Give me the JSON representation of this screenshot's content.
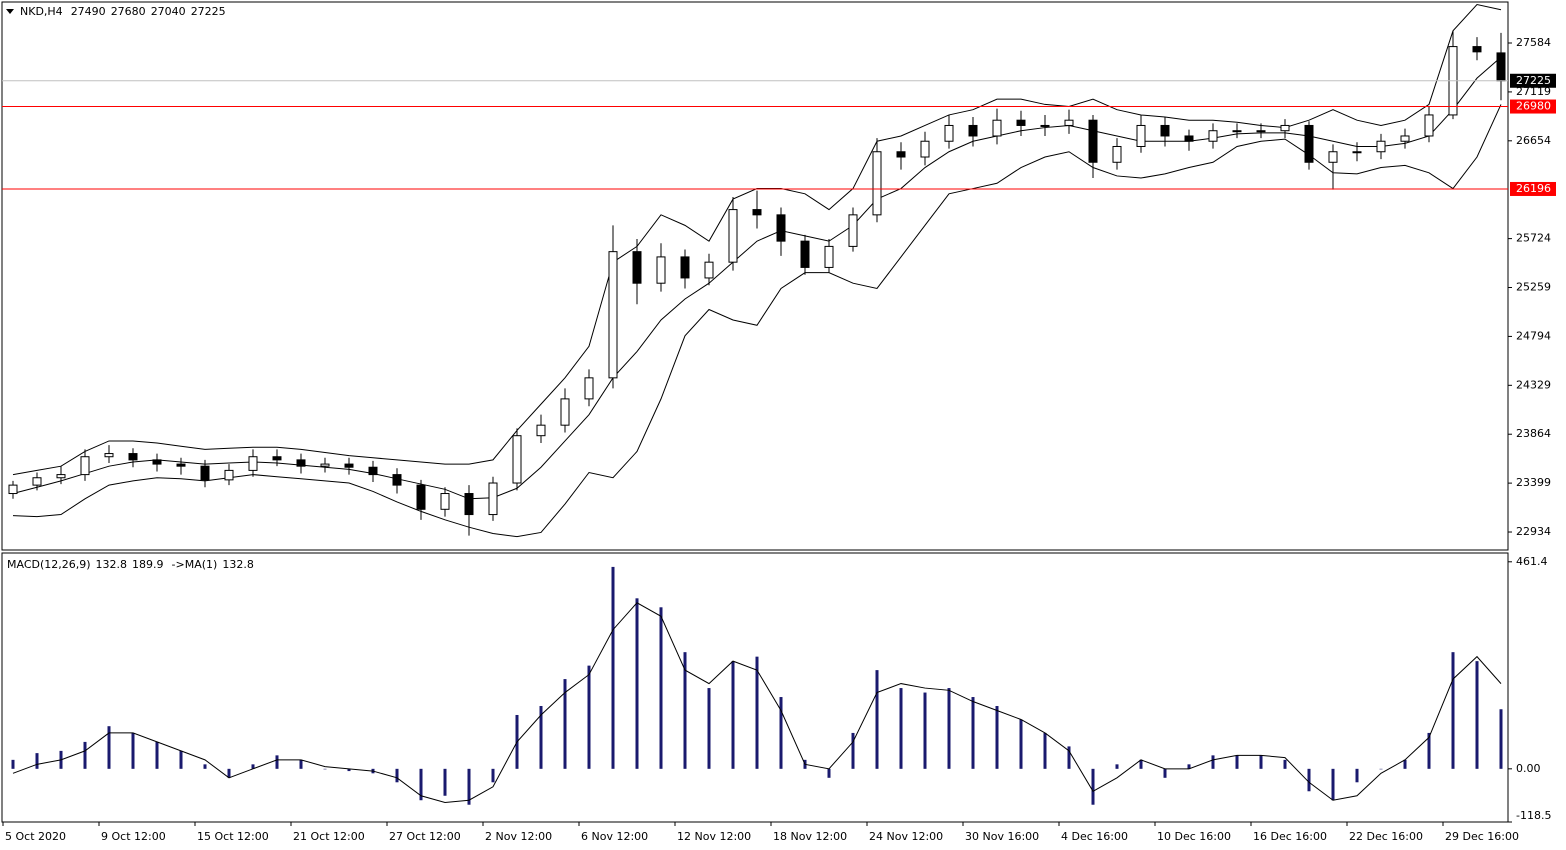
{
  "chart_data": [
    {
      "type": "candlestick",
      "title": "NKD,H4",
      "last_bar": {
        "open": 27490,
        "high": 27680,
        "low": 27040,
        "close": 27225
      },
      "ylim": [
        22763,
        27993
      ],
      "yticks": [
        22934,
        23399,
        23864,
        24329,
        24794,
        25259,
        25724,
        26654,
        27119,
        27584
      ],
      "levels": [
        {
          "value": 26980,
          "color": "#ff0000"
        },
        {
          "value": 26196,
          "color": "#ff0000"
        }
      ],
      "open": [
        23300,
        23380,
        23450,
        23480,
        23650,
        23680,
        23620,
        23580,
        23560,
        23430,
        23520,
        23650,
        23620,
        23560,
        23580,
        23550,
        23480,
        23380,
        23150,
        23300,
        23100,
        23400,
        23850,
        23950,
        24200,
        24400,
        25600,
        25300,
        25550,
        25350,
        25500,
        26000,
        25950,
        25700,
        25450,
        25650,
        25950,
        26550,
        26500,
        26650,
        26800,
        26700,
        26850,
        26800,
        26800,
        26850,
        26450,
        26600,
        26800,
        26700,
        26650,
        26750,
        26750,
        26750,
        26800,
        26450,
        26550,
        26550,
        26650,
        26700,
        26900,
        27550,
        27490
      ],
      "high": [
        23420,
        23500,
        23560,
        23720,
        23760,
        23730,
        23680,
        23640,
        23620,
        23580,
        23720,
        23720,
        23680,
        23640,
        23640,
        23610,
        23540,
        23430,
        23360,
        23380,
        23460,
        23920,
        24050,
        24300,
        24480,
        25850,
        25720,
        25680,
        25620,
        25580,
        26120,
        26180,
        26020,
        25760,
        25720,
        26020,
        26680,
        26640,
        26740,
        26900,
        26880,
        26960,
        26940,
        26900,
        26950,
        26900,
        26680,
        26900,
        26880,
        26760,
        26820,
        26820,
        26820,
        26860,
        26840,
        26620,
        26640,
        26720,
        26770,
        26980,
        27700,
        27640,
        27680
      ],
      "low": [
        23250,
        23330,
        23390,
        23420,
        23590,
        23550,
        23510,
        23480,
        23360,
        23380,
        23460,
        23560,
        23490,
        23500,
        23480,
        23410,
        23300,
        23050,
        23080,
        22900,
        23040,
        23330,
        23780,
        23880,
        24130,
        24300,
        25100,
        25220,
        25250,
        25280,
        25420,
        25820,
        25560,
        25380,
        25400,
        25600,
        25880,
        26380,
        26420,
        26580,
        26600,
        26620,
        26700,
        26700,
        26720,
        26300,
        26380,
        26540,
        26600,
        26560,
        26580,
        26680,
        26680,
        26680,
        26380,
        26190,
        26460,
        26480,
        26580,
        26640,
        26860,
        27420,
        27040
      ],
      "close": [
        23380,
        23450,
        23480,
        23650,
        23680,
        23620,
        23580,
        23560,
        23430,
        23520,
        23650,
        23620,
        23560,
        23580,
        23550,
        23480,
        23380,
        23150,
        23300,
        23100,
        23400,
        23850,
        23950,
        24200,
        24400,
        25600,
        25300,
        25550,
        25350,
        25500,
        26000,
        25950,
        25700,
        25450,
        25650,
        25950,
        26550,
        26500,
        26650,
        26800,
        26700,
        26850,
        26800,
        26800,
        26850,
        26450,
        26600,
        26800,
        26700,
        26650,
        26750,
        26750,
        26750,
        26800,
        26450,
        26550,
        26550,
        26650,
        26700,
        26900,
        27550,
        27500,
        27225
      ],
      "bands": [
        {
          "color": "#000000",
          "values": [
            23480,
            23520,
            23560,
            23700,
            23800,
            23800,
            23780,
            23750,
            23720,
            23730,
            23740,
            23740,
            23720,
            23690,
            23660,
            23640,
            23620,
            23600,
            23580,
            23580,
            23620,
            23900,
            24150,
            24400,
            24700,
            25500,
            25650,
            25950,
            25850,
            25700,
            26100,
            26200,
            26200,
            26150,
            26000,
            26200,
            26650,
            26700,
            26800,
            26900,
            26950,
            27050,
            27050,
            27000,
            26980,
            27050,
            26950,
            26900,
            26880,
            26850,
            26850,
            26830,
            26800,
            26780,
            26850,
            26950,
            26850,
            26800,
            26850,
            27000,
            27700,
            27950,
            27900
          ]
        },
        {
          "color": "#000000",
          "values": [
            23300,
            23360,
            23420,
            23490,
            23560,
            23600,
            23620,
            23600,
            23580,
            23590,
            23600,
            23590,
            23570,
            23550,
            23530,
            23490,
            23440,
            23390,
            23340,
            23250,
            23260,
            23350,
            23550,
            23800,
            24050,
            24400,
            24650,
            24950,
            25150,
            25300,
            25500,
            25700,
            25800,
            25750,
            25700,
            25850,
            26100,
            26200,
            26400,
            26550,
            26650,
            26700,
            26750,
            26780,
            26800,
            26750,
            26700,
            26650,
            26650,
            26650,
            26680,
            26720,
            26730,
            26730,
            26700,
            26650,
            26600,
            26600,
            26630,
            26700,
            26950,
            27250,
            27450
          ]
        },
        {
          "color": "#000000",
          "values": [
            23090,
            23080,
            23100,
            23250,
            23380,
            23420,
            23450,
            23440,
            23420,
            23450,
            23480,
            23460,
            23440,
            23420,
            23400,
            23320,
            23220,
            23130,
            23050,
            22980,
            22920,
            22890,
            22930,
            23200,
            23500,
            23450,
            23700,
            24200,
            24800,
            25050,
            24950,
            24900,
            25250,
            25400,
            25400,
            25300,
            25250,
            25550,
            25850,
            26150,
            26200,
            26250,
            26400,
            26500,
            26550,
            26400,
            26320,
            26300,
            26340,
            26400,
            26450,
            26600,
            26650,
            26670,
            26520,
            26350,
            26340,
            26400,
            26420,
            26350,
            26200,
            26500,
            27000
          ]
        }
      ]
    },
    {
      "type": "macd",
      "title": "MACD(12,26,9)",
      "macd_value": 132.8,
      "signal_value": 189.9,
      "ma_label": "->MA(1)",
      "ma_value": 132.8,
      "ylim": [
        -118.5,
        481
      ],
      "yticks": [
        -118.5,
        {
          "value": 0,
          "label": "0.00"
        },
        461.4
      ],
      "categories": [
        "5 Oct 2020",
        null,
        null,
        null,
        "9 Oct 12:00",
        null,
        null,
        null,
        "15 Oct 12:00",
        null,
        null,
        null,
        "21 Oct 12:00",
        null,
        null,
        null,
        "27 Oct 12:00",
        null,
        null,
        null,
        "2 Nov 12:00",
        null,
        null,
        null,
        "6 Nov 12:00",
        null,
        null,
        null,
        "12 Nov 12:00",
        null,
        null,
        null,
        "18 Nov 12:00",
        null,
        null,
        null,
        "24 Nov 12:00",
        null,
        null,
        null,
        "30 Nov 16:00",
        null,
        null,
        null,
        "4 Dec 16:00",
        null,
        null,
        null,
        "10 Dec 16:00",
        null,
        null,
        null,
        "16 Dec 16:00",
        null,
        null,
        null,
        "22 Dec 16:00",
        null,
        null,
        null,
        "29 Dec 16:00",
        null,
        null
      ],
      "histogram": {
        "color": "#1a1a6e",
        "values": [
          20,
          35,
          40,
          60,
          95,
          80,
          60,
          40,
          10,
          -20,
          10,
          30,
          20,
          0,
          -5,
          -10,
          -30,
          -70,
          -60,
          -80,
          -30,
          120,
          140,
          200,
          230,
          450,
          380,
          360,
          260,
          180,
          240,
          250,
          160,
          20,
          -20,
          80,
          220,
          180,
          170,
          180,
          160,
          140,
          110,
          80,
          50,
          -80,
          10,
          20,
          -20,
          10,
          30,
          30,
          30,
          20,
          -50,
          -70,
          -30,
          0,
          20,
          80,
          260,
          240,
          132.8
        ]
      },
      "signal": {
        "color": "#000000",
        "values": [
          -10,
          10,
          20,
          40,
          80,
          80,
          60,
          40,
          20,
          -20,
          0,
          20,
          20,
          5,
          0,
          -5,
          -20,
          -60,
          -75,
          -70,
          -40,
          60,
          120,
          170,
          210,
          310,
          370,
          340,
          220,
          190,
          240,
          220,
          130,
          10,
          0,
          60,
          170,
          190,
          180,
          175,
          150,
          130,
          110,
          80,
          40,
          -50,
          -20,
          20,
          0,
          0,
          20,
          30,
          30,
          25,
          -30,
          -70,
          -60,
          -10,
          20,
          70,
          200,
          250,
          189.9
        ]
      }
    }
  ]
}
